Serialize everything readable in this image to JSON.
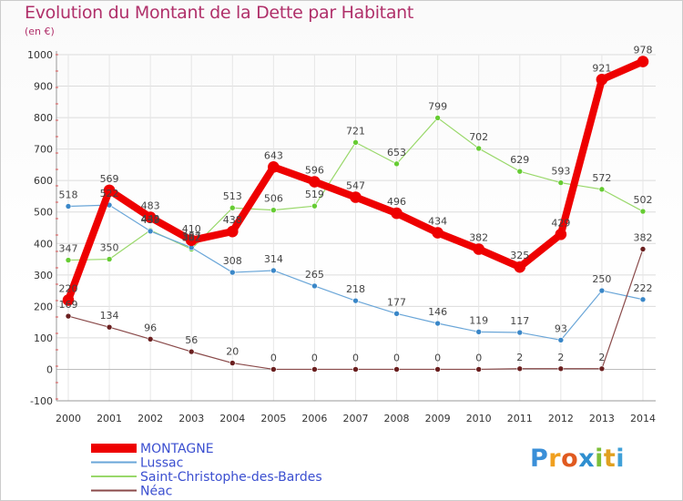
{
  "title": "Evolution du Montant de la Dette par Habitant",
  "unit": "(en €)",
  "logo": {
    "text": "Proxiti",
    "letters": [
      "P",
      "r",
      "o",
      "x",
      "i",
      "t",
      "i"
    ],
    "colors": [
      "#3a8fd8",
      "#f0a020",
      "#e05a20",
      "#2f8fd0",
      "#7cbf3a",
      "#e0a020",
      "#3fa0d8"
    ]
  },
  "chart_data": {
    "type": "line",
    "x": [
      "2000",
      "2001",
      "2002",
      "2003",
      "2004",
      "2005",
      "2006",
      "2007",
      "2008",
      "2009",
      "2010",
      "2011",
      "2012",
      "2013",
      "2014"
    ],
    "ylim": [
      -100,
      1000
    ],
    "yticks": [
      -100,
      0,
      100,
      200,
      300,
      400,
      500,
      600,
      700,
      800,
      900,
      1000
    ],
    "ytick_labels": [
      "-100",
      "0",
      "100",
      "200",
      "300",
      "400",
      "500",
      "600",
      "700",
      "800",
      "900",
      "1000"
    ],
    "grid": true,
    "legend_position": "bottom-left",
    "series": [
      {
        "name": "Saint-Christophe-des-Bardes",
        "color": "#99d86a",
        "marker": "#66cc33",
        "width": 1.2,
        "values": [
          347,
          350,
          442,
          382,
          513,
          506,
          519,
          721,
          653,
          799,
          702,
          629,
          593,
          572,
          502
        ],
        "labels": [
          "347",
          "350",
          "442",
          "382",
          "513",
          "506",
          "519",
          "721",
          "653",
          "799",
          "702",
          "629",
          "593",
          "572",
          "502"
        ]
      },
      {
        "name": "Lussac",
        "color": "#6aa6d8",
        "marker": "#3a87c8",
        "width": 1.2,
        "values": [
          518,
          522,
          439,
          387,
          308,
          314,
          265,
          218,
          177,
          146,
          119,
          117,
          93,
          250,
          222
        ],
        "labels": [
          "518",
          "522",
          "439",
          "387",
          "308",
          "314",
          "265",
          "218",
          "177",
          "146",
          "119",
          "117",
          "93",
          "250",
          "222"
        ]
      },
      {
        "name": "Néac",
        "color": "#8a4a4a",
        "marker": "#6a1f1f",
        "width": 1.2,
        "values": [
          169,
          134,
          96,
          56,
          20,
          0,
          0,
          0,
          0,
          0,
          0,
          2,
          2,
          2,
          382
        ],
        "labels": [
          "169",
          "134",
          "96",
          "56",
          "20",
          "0",
          "0",
          "0",
          "0",
          "0",
          "0",
          "2",
          "2",
          "2",
          "382"
        ]
      },
      {
        "name": "MONTAGNE",
        "color": "#ee0000",
        "marker": "#ee0000",
        "width": 8,
        "values": [
          220,
          569,
          483,
          410,
          438,
          643,
          596,
          547,
          496,
          434,
          382,
          325,
          429,
          921,
          978
        ],
        "labels": [
          "220",
          "569",
          "483",
          "410",
          "438",
          "643",
          "596",
          "547",
          "496",
          "434",
          "382",
          "325",
          "429",
          "921",
          "978"
        ]
      }
    ],
    "legend": [
      "MONTAGNE",
      "Lussac",
      "Saint-Christophe-des-Bardes",
      "Néac"
    ]
  }
}
